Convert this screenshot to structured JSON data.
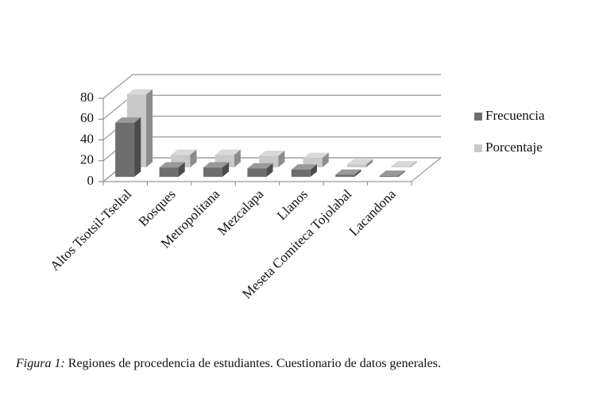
{
  "chart_data": {
    "type": "bar3d",
    "categories": [
      "Altos Tsotsil-Tseltal",
      "Bosques",
      "Metropolitana",
      "Mezcalapa",
      "Llanos",
      "Meseta Comiteca Tojolabal",
      "Lacandona"
    ],
    "series": [
      {
        "name": "Frecuencia",
        "color": "#6e6e6e",
        "values": [
          52,
          9,
          9,
          8,
          7,
          2,
          1
        ]
      },
      {
        "name": "Porcentaje",
        "color": "#c9c9c9",
        "values": [
          70,
          12,
          12,
          11,
          9,
          3,
          1
        ]
      }
    ],
    "ylim": [
      0,
      80
    ],
    "yticks": [
      0,
      20,
      40,
      60,
      80
    ],
    "grid": true,
    "legend": "right"
  },
  "caption": {
    "label": "Figura 1:",
    "text": "Regiones de procedencia de estudiantes. Cuestionario de datos generales."
  }
}
